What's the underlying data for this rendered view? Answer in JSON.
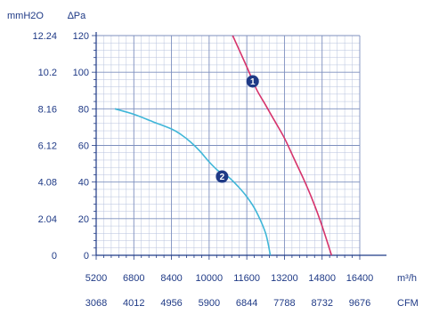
{
  "chart_data": {
    "type": "line",
    "title": "",
    "y_units": {
      "mmh2o": "mmH2O",
      "pa": "∆Pa"
    },
    "x_units": {
      "m3h": "m³/h",
      "cfm": "CFM"
    },
    "xlim": [
      5200,
      16400
    ],
    "ylim": [
      0,
      120
    ],
    "y_ticks_pa": [
      "0",
      "20",
      "40",
      "60",
      "80",
      "100",
      "120"
    ],
    "y_ticks_mmh2o": [
      "0",
      "2.04",
      "4.08",
      "6.12",
      "8.16",
      "10.2",
      "12.24"
    ],
    "x_ticks_m3h": [
      "5200",
      "6800",
      "8400",
      "10000",
      "11600",
      "13200",
      "14800",
      "16400"
    ],
    "x_ticks_cfm": [
      "3068",
      "4012",
      "4956",
      "5900",
      "6844",
      "7788",
      "8732",
      "9676"
    ],
    "grid": true,
    "series": [
      {
        "label": "1",
        "color": "#d6336c",
        "x": [
          11000,
          11600,
          12000,
          12400,
          12800,
          13200,
          13600,
          14000,
          14400,
          14800,
          15200
        ],
        "y": [
          120,
          103,
          91,
          82,
          73,
          64,
          53,
          42,
          30,
          16,
          0
        ],
        "badge_at": [
          11850,
          95
        ]
      },
      {
        "label": "2",
        "color": "#3fb6d8",
        "x": [
          6000,
          6800,
          7600,
          8400,
          8800,
          9200,
          9600,
          10000,
          10400,
          10800,
          11200,
          11600,
          12000,
          12400,
          12600
        ],
        "y": [
          80,
          77,
          73,
          69,
          66,
          62,
          57,
          51,
          46,
          43,
          38,
          32,
          24,
          12,
          0
        ],
        "badge_at": [
          10550,
          43
        ]
      }
    ]
  }
}
